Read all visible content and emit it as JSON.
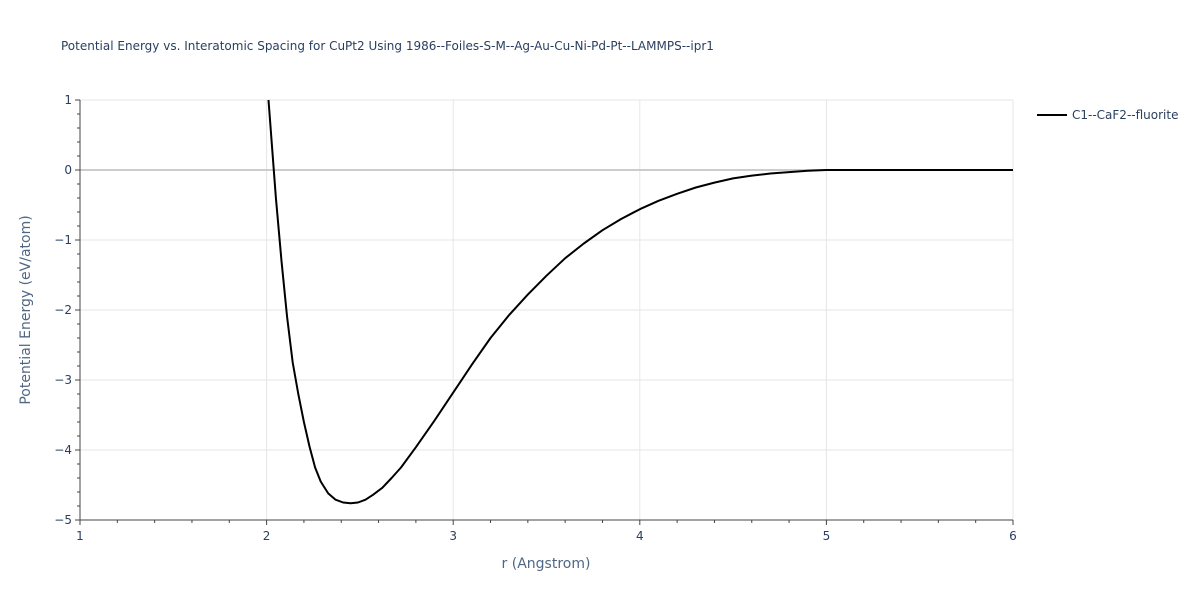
{
  "chart_data": {
    "type": "line",
    "title": "Potential Energy vs. Interatomic Spacing for CuPt2 Using 1986--Foiles-S-M--Ag-Au-Cu-Ni-Pd-Pt--LAMMPS--ipr1",
    "xlabel": "r (Angstrom)",
    "ylabel": "Potential Energy (eV/atom)",
    "xlim": [
      1,
      6
    ],
    "ylim": [
      -5,
      1
    ],
    "xticks": [
      1,
      2,
      3,
      4,
      5,
      6
    ],
    "xtick_labels": [
      "1",
      "2",
      "3",
      "4",
      "5",
      "6"
    ],
    "yticks": [
      1,
      0,
      -1,
      -2,
      -3,
      -4,
      -5
    ],
    "ytick_labels": [
      "1",
      "0",
      "−1",
      "−2",
      "−3",
      "−4",
      "−5"
    ],
    "grid": true,
    "legend_position": "top-right",
    "series": [
      {
        "name": "C1--CaF2--fluorite",
        "color": "#000000",
        "x": [
          2.01,
          2.03,
          2.05,
          2.08,
          2.11,
          2.14,
          2.17,
          2.2,
          2.23,
          2.26,
          2.29,
          2.33,
          2.37,
          2.41,
          2.45,
          2.49,
          2.53,
          2.57,
          2.62,
          2.67,
          2.72,
          2.8,
          2.9,
          3.0,
          3.1,
          3.2,
          3.3,
          3.4,
          3.5,
          3.6,
          3.7,
          3.8,
          3.9,
          4.0,
          4.1,
          4.2,
          4.3,
          4.4,
          4.5,
          4.6,
          4.7,
          4.8,
          4.9,
          5.0,
          5.2,
          5.5,
          6.0
        ],
        "y": [
          1.0,
          0.3,
          -0.4,
          -1.3,
          -2.1,
          -2.75,
          -3.2,
          -3.6,
          -3.95,
          -4.25,
          -4.45,
          -4.62,
          -4.71,
          -4.75,
          -4.76,
          -4.75,
          -4.71,
          -4.64,
          -4.54,
          -4.4,
          -4.25,
          -3.96,
          -3.58,
          -3.18,
          -2.78,
          -2.4,
          -2.07,
          -1.78,
          -1.51,
          -1.26,
          -1.05,
          -0.86,
          -0.7,
          -0.56,
          -0.44,
          -0.34,
          -0.25,
          -0.18,
          -0.12,
          -0.08,
          -0.05,
          -0.03,
          -0.01,
          0.0,
          0.0,
          0.0,
          0.0
        ]
      }
    ]
  }
}
